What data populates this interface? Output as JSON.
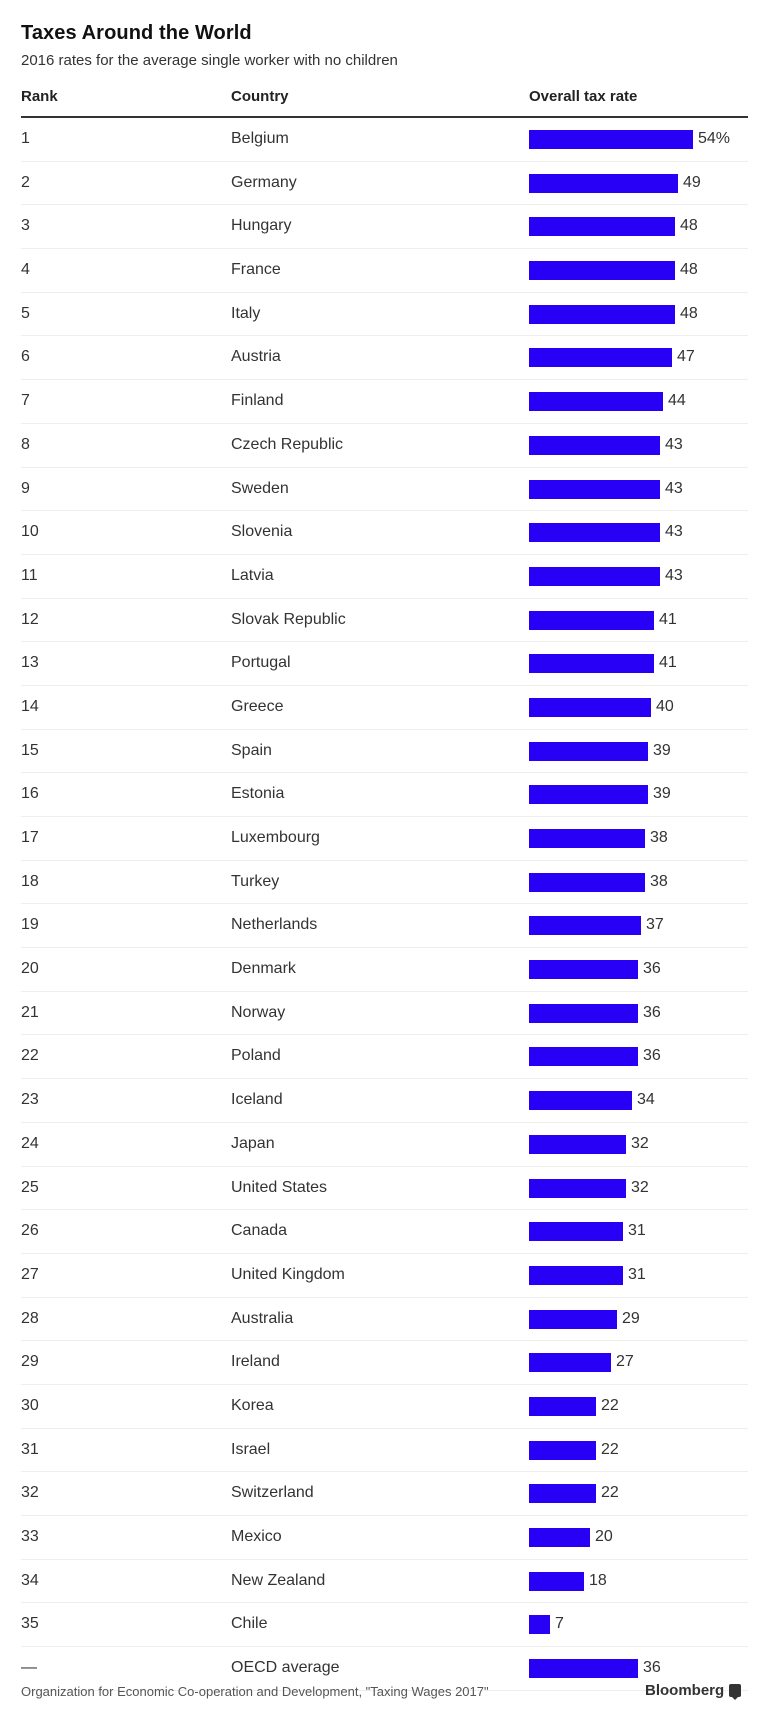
{
  "header": {
    "title": "Taxes Around the World",
    "subtitle": "2016 rates for the average single worker with no children"
  },
  "table": {
    "columns": [
      "Rank",
      "Country",
      "Overall tax rate"
    ],
    "bar_color": "#2800f5",
    "rows": [
      {
        "rank": "1",
        "country": "Belgium",
        "value": 54,
        "label": "54%"
      },
      {
        "rank": "2",
        "country": "Germany",
        "value": 49,
        "label": "49"
      },
      {
        "rank": "3",
        "country": "Hungary",
        "value": 48,
        "label": "48"
      },
      {
        "rank": "4",
        "country": "France",
        "value": 48,
        "label": "48"
      },
      {
        "rank": "5",
        "country": "Italy",
        "value": 48,
        "label": "48"
      },
      {
        "rank": "6",
        "country": "Austria",
        "value": 47,
        "label": "47"
      },
      {
        "rank": "7",
        "country": "Finland",
        "value": 44,
        "label": "44"
      },
      {
        "rank": "8",
        "country": "Czech Republic",
        "value": 43,
        "label": "43"
      },
      {
        "rank": "9",
        "country": "Sweden",
        "value": 43,
        "label": "43"
      },
      {
        "rank": "10",
        "country": "Slovenia",
        "value": 43,
        "label": "43"
      },
      {
        "rank": "11",
        "country": "Latvia",
        "value": 43,
        "label": "43"
      },
      {
        "rank": "12",
        "country": "Slovak Republic",
        "value": 41,
        "label": "41"
      },
      {
        "rank": "13",
        "country": "Portugal",
        "value": 41,
        "label": "41"
      },
      {
        "rank": "14",
        "country": "Greece",
        "value": 40,
        "label": "40"
      },
      {
        "rank": "15",
        "country": "Spain",
        "value": 39,
        "label": "39"
      },
      {
        "rank": "16",
        "country": "Estonia",
        "value": 39,
        "label": "39"
      },
      {
        "rank": "17",
        "country": "Luxembourg",
        "value": 38,
        "label": "38"
      },
      {
        "rank": "18",
        "country": "Turkey",
        "value": 38,
        "label": "38"
      },
      {
        "rank": "19",
        "country": "Netherlands",
        "value": 37,
        "label": "37"
      },
      {
        "rank": "20",
        "country": "Denmark",
        "value": 36,
        "label": "36"
      },
      {
        "rank": "21",
        "country": "Norway",
        "value": 36,
        "label": "36"
      },
      {
        "rank": "22",
        "country": "Poland",
        "value": 36,
        "label": "36"
      },
      {
        "rank": "23",
        "country": "Iceland",
        "value": 34,
        "label": "34"
      },
      {
        "rank": "24",
        "country": "Japan",
        "value": 32,
        "label": "32"
      },
      {
        "rank": "25",
        "country": "United States",
        "value": 32,
        "label": "32"
      },
      {
        "rank": "26",
        "country": "Canada",
        "value": 31,
        "label": "31"
      },
      {
        "rank": "27",
        "country": "United Kingdom",
        "value": 31,
        "label": "31"
      },
      {
        "rank": "28",
        "country": "Australia",
        "value": 29,
        "label": "29"
      },
      {
        "rank": "29",
        "country": "Ireland",
        "value": 27,
        "label": "27"
      },
      {
        "rank": "30",
        "country": "Korea",
        "value": 22,
        "label": "22"
      },
      {
        "rank": "31",
        "country": "Israel",
        "value": 22,
        "label": "22"
      },
      {
        "rank": "32",
        "country": "Switzerland",
        "value": 22,
        "label": "22"
      },
      {
        "rank": "33",
        "country": "Mexico",
        "value": 20,
        "label": "20"
      },
      {
        "rank": "34",
        "country": "New Zealand",
        "value": 18,
        "label": "18"
      },
      {
        "rank": "35",
        "country": "Chile",
        "value": 7,
        "label": "7"
      },
      {
        "rank": "—",
        "country": "OECD average",
        "value": 36,
        "label": "36"
      }
    ]
  },
  "footer": {
    "source": "Organization for Economic Co-operation and Development, \"Taxing Wages 2017\"",
    "brand": "Bloomberg",
    "brand_icon": "bloomberg-chat-icon"
  },
  "chart_data": {
    "type": "bar",
    "orientation": "horizontal",
    "title": "Taxes Around the World",
    "subtitle": "2016 rates for the average single worker with no children",
    "xlabel": "Overall tax rate (%)",
    "ylabel": "Country",
    "categories": [
      "Belgium",
      "Germany",
      "Hungary",
      "France",
      "Italy",
      "Austria",
      "Finland",
      "Czech Republic",
      "Sweden",
      "Slovenia",
      "Latvia",
      "Slovak Republic",
      "Portugal",
      "Greece",
      "Spain",
      "Estonia",
      "Luxembourg",
      "Turkey",
      "Netherlands",
      "Denmark",
      "Norway",
      "Poland",
      "Iceland",
      "Japan",
      "United States",
      "Canada",
      "United Kingdom",
      "Australia",
      "Ireland",
      "Korea",
      "Israel",
      "Switzerland",
      "Mexico",
      "New Zealand",
      "Chile",
      "OECD average"
    ],
    "values": [
      54,
      49,
      48,
      48,
      48,
      47,
      44,
      43,
      43,
      43,
      43,
      41,
      41,
      40,
      39,
      39,
      38,
      38,
      37,
      36,
      36,
      36,
      34,
      32,
      32,
      31,
      31,
      29,
      27,
      22,
      22,
      22,
      20,
      18,
      7,
      36
    ],
    "grid": false,
    "legend": null,
    "source": "Organization for Economic Co-operation and Development, \"Taxing Wages 2017\""
  }
}
